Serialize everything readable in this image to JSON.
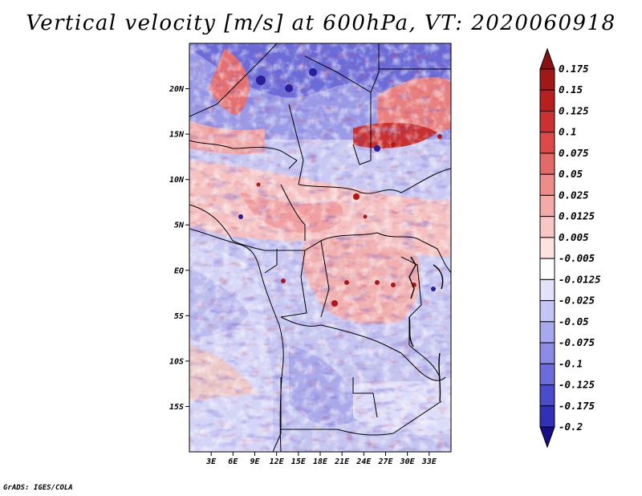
{
  "title": "Vertical velocity [m/s] at 600hPa, VT: 2020060918",
  "credit": "GrADS: IGES/COLA",
  "map": {
    "region": "Central Africa",
    "lat_range": [
      -20,
      25
    ],
    "lon_range": [
      0,
      36
    ],
    "lat_ticks": [
      {
        "label": "20N",
        "value": 20
      },
      {
        "label": "15N",
        "value": 15
      },
      {
        "label": "10N",
        "value": 10
      },
      {
        "label": "5N",
        "value": 5
      },
      {
        "label": "EQ",
        "value": 0
      },
      {
        "label": "5S",
        "value": -5
      },
      {
        "label": "10S",
        "value": -10
      },
      {
        "label": "15S",
        "value": -15
      }
    ],
    "lon_ticks": [
      {
        "label": "3E",
        "value": 3
      },
      {
        "label": "6E",
        "value": 6
      },
      {
        "label": "9E",
        "value": 9
      },
      {
        "label": "12E",
        "value": 12
      },
      {
        "label": "15E",
        "value": 15
      },
      {
        "label": "18E",
        "value": 18
      },
      {
        "label": "21E",
        "value": 21
      },
      {
        "label": "24E",
        "value": 24
      },
      {
        "label": "27E",
        "value": 27
      },
      {
        "label": "30E",
        "value": 30
      },
      {
        "label": "33E",
        "value": 33
      }
    ]
  },
  "colorbar": {
    "levels": [
      {
        "label": "0.175",
        "color": "#a01818"
      },
      {
        "label": "0.15",
        "color": "#b82020"
      },
      {
        "label": "0.125",
        "color": "#cc3030"
      },
      {
        "label": "0.1",
        "color": "#dc4a48"
      },
      {
        "label": "0.075",
        "color": "#e46a68"
      },
      {
        "label": "0.05",
        "color": "#ee8c8a"
      },
      {
        "label": "0.025",
        "color": "#f4aaa8"
      },
      {
        "label": "0.0125",
        "color": "#f8c6c4"
      },
      {
        "label": "0.005",
        "color": "#fce2e0"
      },
      {
        "label": "-0.005",
        "color": "#ffffff"
      },
      {
        "label": "-0.0125",
        "color": "#e2e2fa"
      },
      {
        "label": "-0.025",
        "color": "#c6c6f4"
      },
      {
        "label": "-0.05",
        "color": "#a8a8ee"
      },
      {
        "label": "-0.075",
        "color": "#8c8ce6"
      },
      {
        "label": "-0.1",
        "color": "#6c6cdc"
      },
      {
        "label": "-0.125",
        "color": "#4a4acc"
      },
      {
        "label": "-0.175",
        "color": "#3030b8"
      },
      {
        "label": "-0.2",
        "color": "#2018a0"
      }
    ],
    "top_arrow_color": "#8c1010",
    "bottom_arrow_color": "#180c88"
  }
}
